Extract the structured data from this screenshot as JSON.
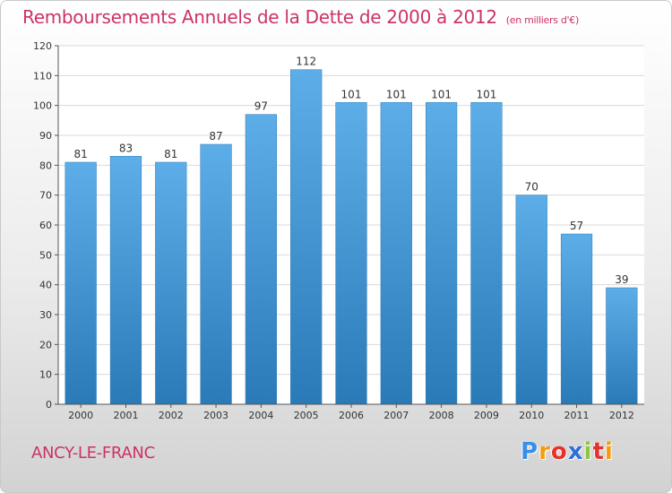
{
  "title": "Remboursements Annuels de la Dette de 2000 à 2012",
  "unit_label": "(en milliers d'€)",
  "city": "ANCY-LE-FRANC",
  "logo": {
    "text": "Proxiti",
    "letters": [
      "P",
      "r",
      "o",
      "x",
      "i",
      "t",
      "i"
    ],
    "colors": [
      "#3a8ee6",
      "#f39c12",
      "#e6332a",
      "#2f6fd6",
      "#8cc63f",
      "#e6332a",
      "#f39c12"
    ]
  },
  "chart_data": {
    "type": "bar",
    "categories": [
      "2000",
      "2001",
      "2002",
      "2003",
      "2004",
      "2005",
      "2006",
      "2007",
      "2008",
      "2009",
      "2010",
      "2011",
      "2012"
    ],
    "values": [
      81,
      83,
      81,
      87,
      97,
      112,
      101,
      101,
      101,
      101,
      70,
      57,
      39
    ],
    "ylim": [
      0,
      120
    ],
    "yticks": [
      0,
      10,
      20,
      30,
      40,
      50,
      60,
      70,
      80,
      90,
      100,
      110,
      120
    ],
    "grid": true,
    "bar_color_top": "#5daee8",
    "bar_color_bottom": "#2a7ab8"
  }
}
